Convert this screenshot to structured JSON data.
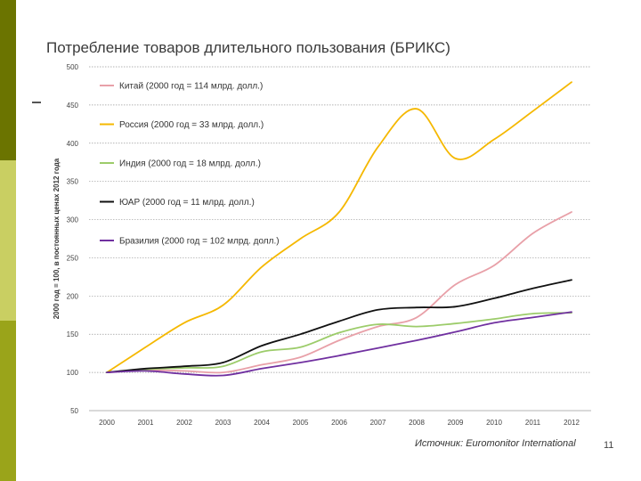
{
  "slide": {
    "title": "Потребление товаров длительного пользования (БРИКС)",
    "source": "Источник: Euromonitor International",
    "page_number": "11"
  },
  "chart_data": {
    "type": "line",
    "title": "Потребление товаров длительного пользования (БРИКС)",
    "xlabel": "",
    "ylabel": "2000 год = 100, в постоянных ценах 2012 года",
    "ylim": [
      50,
      500
    ],
    "yticks": [
      50,
      100,
      150,
      200,
      250,
      300,
      350,
      400,
      450,
      500
    ],
    "grid": true,
    "legend_position": "top-left",
    "x": [
      "2000",
      "2001",
      "2002",
      "2003",
      "2004",
      "2005",
      "2006",
      "2007",
      "2008",
      "2009",
      "2010",
      "2011",
      "2012"
    ],
    "series": [
      {
        "name": "Китай (2000 год = 114 млрд. долл.)",
        "color": "#e8a0a8",
        "values": [
          100,
          103,
          102,
          100,
          110,
          120,
          142,
          160,
          172,
          215,
          240,
          282,
          310
        ]
      },
      {
        "name": "Россия (2000 год = 33 млрд. долл.)",
        "color": "#f5b800",
        "values": [
          100,
          133,
          165,
          188,
          238,
          275,
          310,
          395,
          445,
          380,
          405,
          442,
          480
        ]
      },
      {
        "name": "Индия (2000 год = 18 млрд. долл.)",
        "color": "#9ccc6a",
        "values": [
          100,
          104,
          106,
          108,
          127,
          133,
          152,
          163,
          160,
          164,
          170,
          177,
          178
        ]
      },
      {
        "name": "ЮАР (2000 год = 11 млрд. долл.)",
        "color": "#111111",
        "values": [
          100,
          105,
          108,
          113,
          135,
          150,
          167,
          182,
          185,
          186,
          197,
          210,
          221
        ]
      },
      {
        "name": "Бразилия (2000 год = 102 млрд. долл.)",
        "color": "#7030a0",
        "values": [
          100,
          102,
          98,
          96,
          105,
          113,
          122,
          132,
          142,
          153,
          165,
          172,
          179
        ]
      }
    ]
  }
}
